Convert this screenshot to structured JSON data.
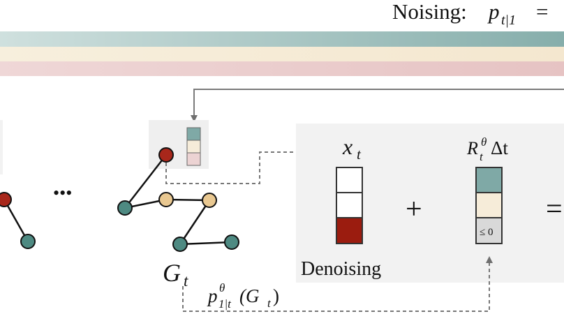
{
  "colors": {
    "teal": "#7fa9a6",
    "cream": "#f6ecd9",
    "rose": "#e9c9c9",
    "dark_red": "#9b1c0f",
    "node_red": "#a8271b",
    "node_teal": "#4e8a82",
    "node_cream": "#e9c891",
    "panel": "#f2f2f2",
    "arrow": "#7a7a7a"
  },
  "header": {
    "noising_label": "Noising:",
    "noising_formula": "p",
    "noising_subscript": "t|1",
    "noising_equals": "= "
  },
  "graph": {
    "ellipsis": "•••",
    "label_main": "G",
    "label_sub": "t"
  },
  "panel": {
    "x_label_main": "x",
    "x_label_sub": "t",
    "rate_label_main": "R",
    "rate_label_sup": "θ",
    "rate_label_sub": "t",
    "rate_label_tail": "Δt",
    "plus": "+",
    "equals": "=",
    "leq_label": "≤ 0",
    "denoising_label": "Denoising"
  },
  "predictor": {
    "main": "p",
    "sup": "θ",
    "sub": "1|t",
    "arg": "(G",
    "arg_sub": "t",
    "close": ")"
  }
}
